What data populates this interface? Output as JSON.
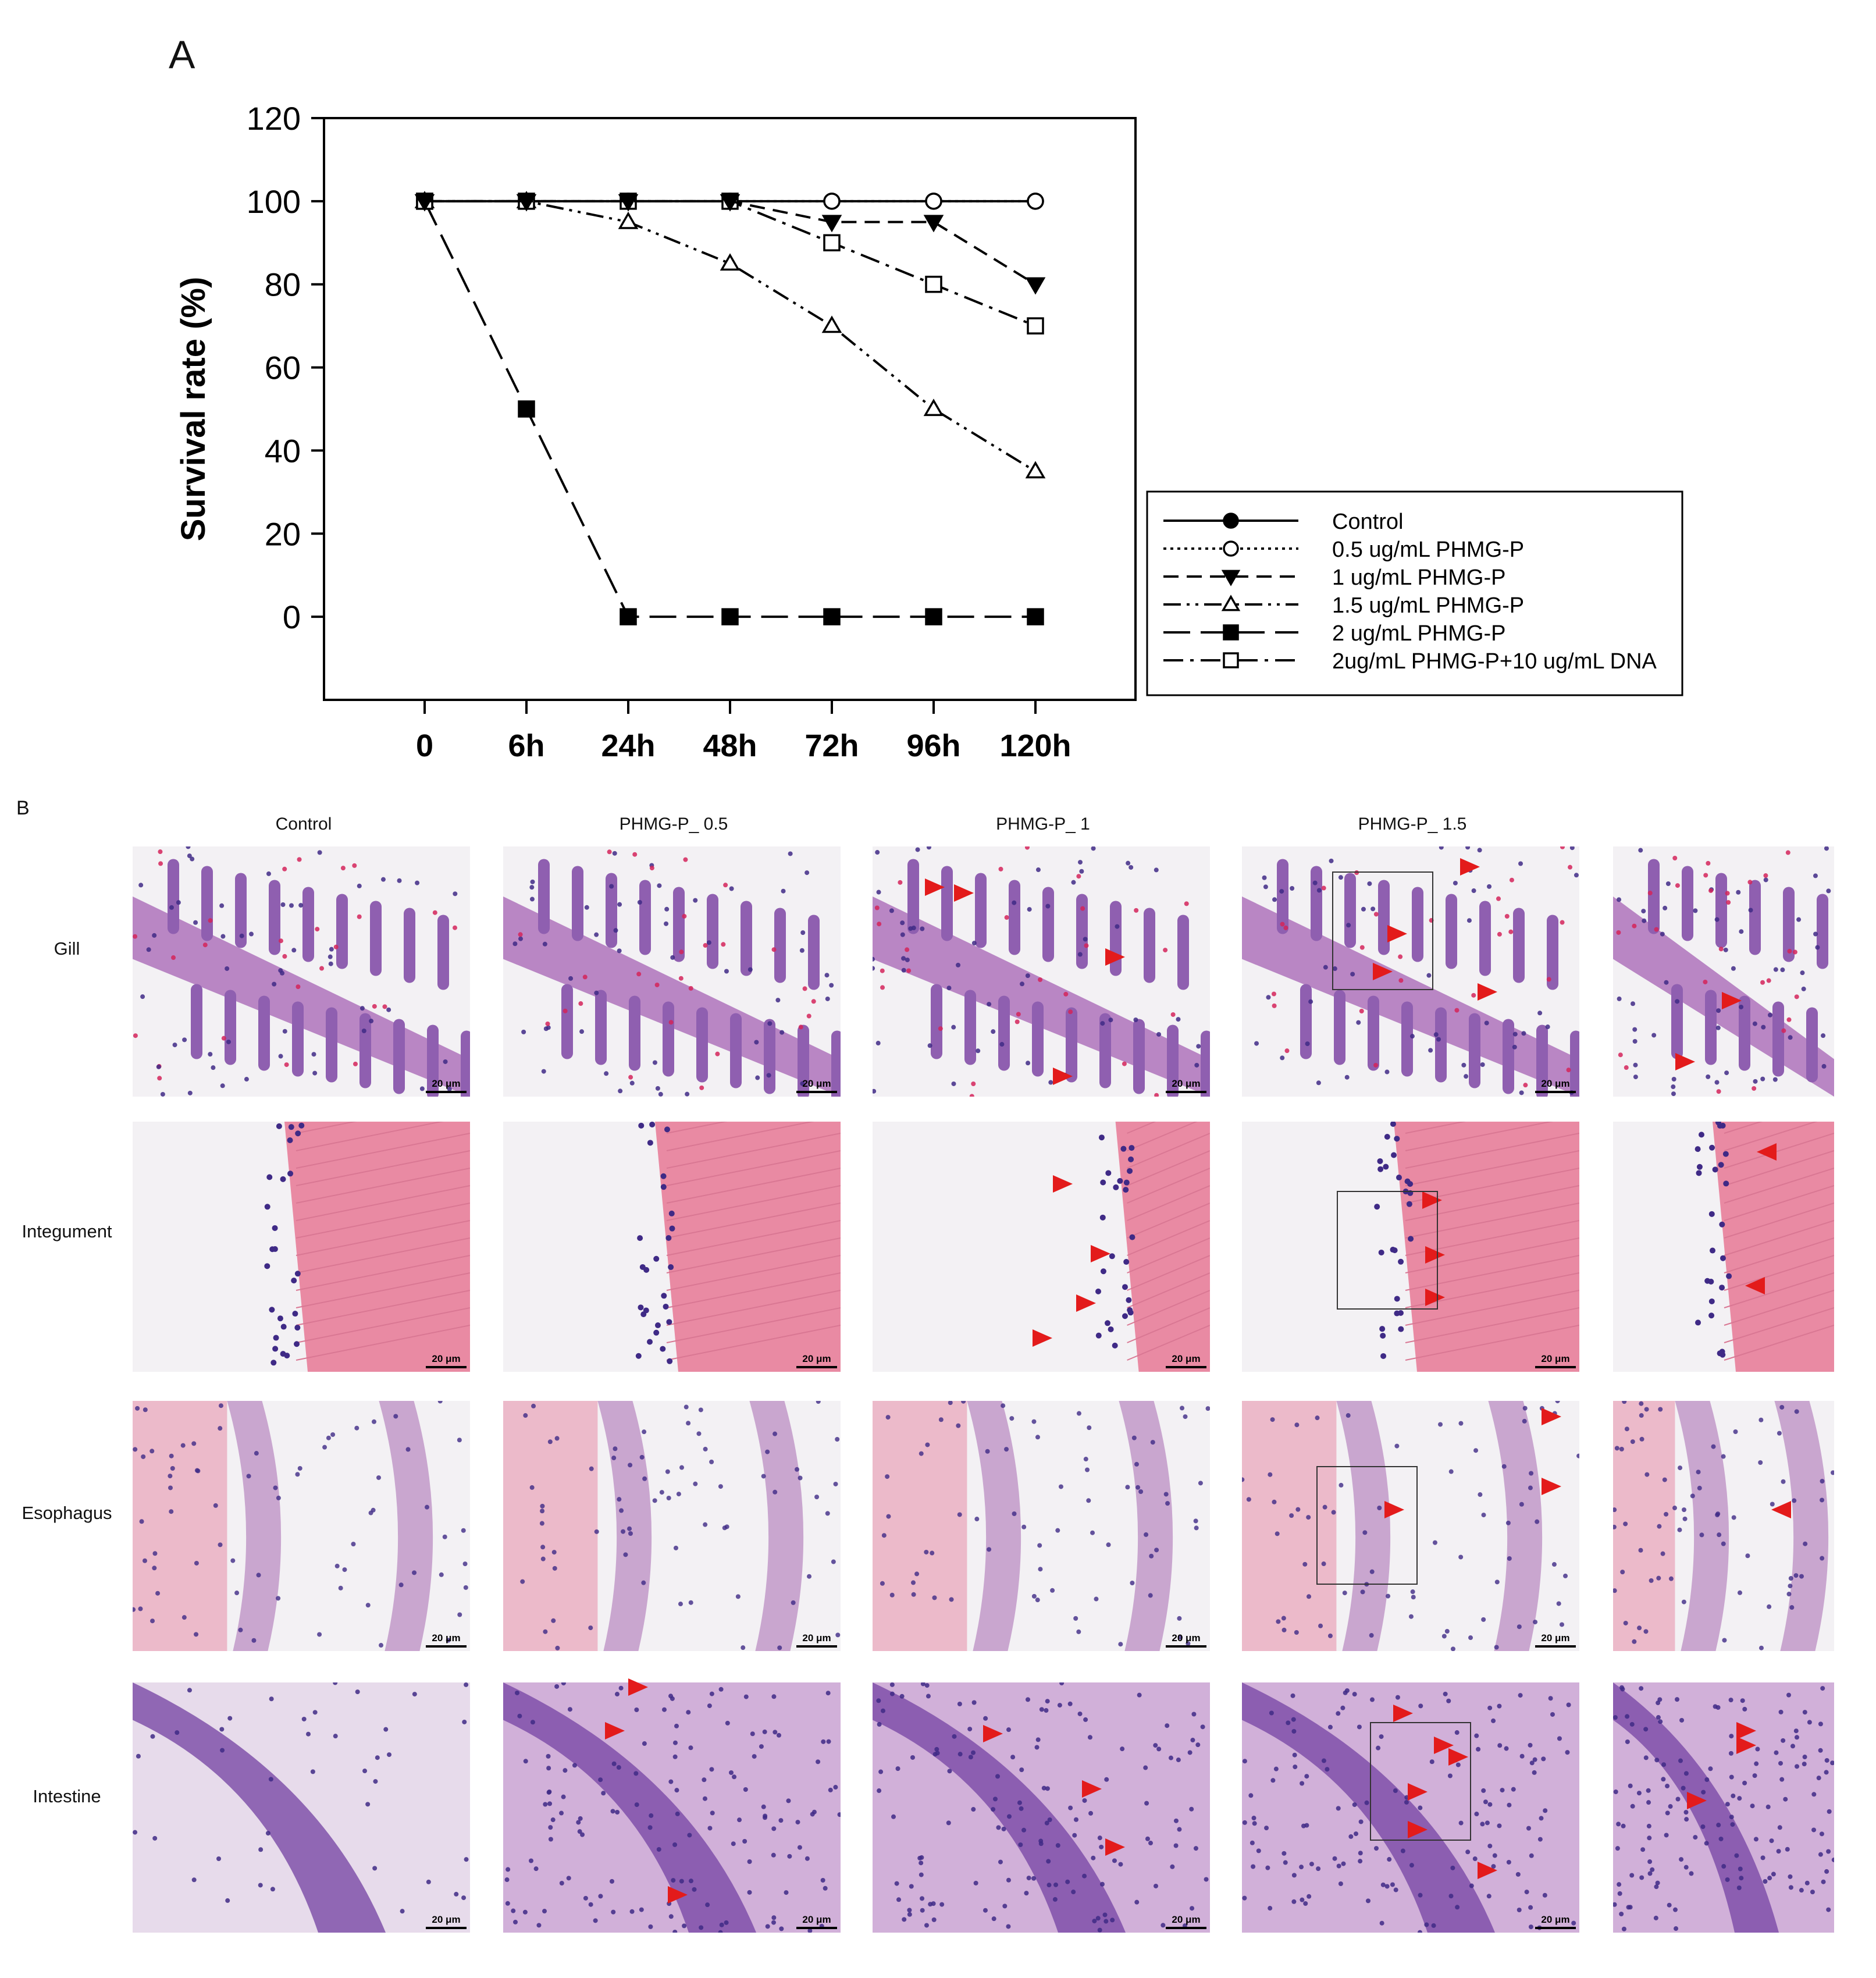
{
  "figure": {
    "panel_a_label": "A",
    "panel_b_label": "B"
  },
  "chart_data": {
    "type": "line",
    "title": "",
    "xlabel": "",
    "ylabel": "Survival rate (%)",
    "categories": [
      "0",
      "6h",
      "24h",
      "48h",
      "72h",
      "96h",
      "120h"
    ],
    "ylim": [
      -20,
      120
    ],
    "yticks": [
      0,
      20,
      40,
      60,
      80,
      100,
      120
    ],
    "grid": false,
    "legend_position": "right",
    "series": [
      {
        "name": "Control",
        "marker": "filled-circle",
        "dash": "solid",
        "values": [
          100,
          100,
          100,
          100,
          100,
          100,
          100
        ]
      },
      {
        "name": "0.5 ug/mL PHMG-P",
        "marker": "open-circle",
        "dash": "dotted",
        "values": [
          100,
          100,
          100,
          100,
          100,
          100,
          100
        ]
      },
      {
        "name": "1 ug/mL PHMG-P",
        "marker": "filled-triangle-down",
        "dash": "dashed",
        "values": [
          100,
          100,
          100,
          100,
          95,
          95,
          80
        ]
      },
      {
        "name": "1.5 ug/mL PHMG-P",
        "marker": "open-triangle-up",
        "dash": "dash-dot-dot",
        "values": [
          100,
          100,
          95,
          85,
          70,
          50,
          35
        ]
      },
      {
        "name": "2 ug/mL PHMG-P",
        "marker": "filled-square",
        "dash": "long-dash",
        "values": [
          100,
          50,
          0,
          0,
          0,
          0,
          0
        ]
      },
      {
        "name": "2ug/mL PHMG-P+10 ug/mL DNA",
        "marker": "open-square",
        "dash": "dash-dot",
        "values": [
          100,
          100,
          100,
          100,
          90,
          80,
          70
        ]
      }
    ]
  },
  "histology": {
    "columns": [
      "Control",
      "PHMG-P_ 0.5",
      "PHMG-P_ 1",
      "PHMG-P_ 1.5"
    ],
    "rows": [
      "Gill",
      "Integument",
      "Esophagus",
      "Intestine"
    ],
    "scale_bar": "20 μm",
    "marker_color": "#e31b1b",
    "stain_colors": {
      "nuclei": "#3f2a86",
      "cytoplasm": "#e8a3b8",
      "muscle": "#e98aa3",
      "background": "#f3f1f4"
    }
  }
}
